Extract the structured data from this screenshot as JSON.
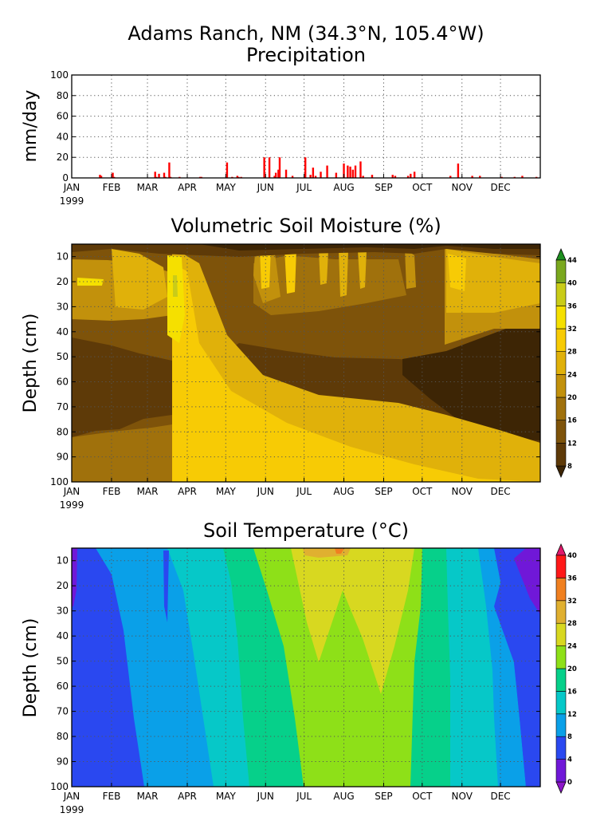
{
  "title": "Adams Ranch, NM (34.3°N, 105.4°W)",
  "chart_data": [
    {
      "type": "bar",
      "title": "Precipitation",
      "ylabel": "mm/day",
      "ylim": [
        0,
        100
      ],
      "yticks": [
        0,
        20,
        40,
        60,
        80,
        100
      ],
      "grid": true,
      "xticks": [
        "JAN",
        "FEB",
        "MAR",
        "APR",
        "MAY",
        "JUN",
        "JUL",
        "AUG",
        "SEP",
        "OCT",
        "NOV",
        "DEC"
      ],
      "year": "1999",
      "bar_color": "#ff0000",
      "x": [
        22,
        23,
        32,
        33,
        65,
        66,
        68,
        72,
        73,
        76,
        77,
        84,
        100,
        101,
        121,
        125,
        129,
        130,
        132,
        150,
        154,
        158,
        159,
        161,
        162,
        167,
        172,
        182,
        186,
        188,
        190,
        194,
        199,
        206,
        212,
        215,
        217,
        219,
        221,
        225,
        227,
        234,
        250,
        252,
        262,
        264,
        267,
        295,
        301,
        312,
        318,
        335,
        345,
        351,
        362
      ],
      "values": [
        3,
        2,
        5,
        1,
        6,
        1,
        4,
        5,
        1,
        15,
        1,
        1,
        1,
        1,
        15,
        1,
        2,
        1,
        1,
        20,
        20,
        2,
        5,
        8,
        20,
        8,
        2,
        20,
        3,
        10,
        2,
        6,
        12,
        5,
        14,
        12,
        11,
        8,
        12,
        16,
        2,
        3,
        3,
        2,
        2,
        4,
        6,
        2,
        14,
        2,
        2,
        1,
        1,
        2,
        1
      ]
    },
    {
      "type": "heatmap",
      "title": "Volumetric Soil Moisture (%)",
      "ylabel": "Depth (cm)",
      "yticks": [
        10,
        20,
        30,
        40,
        50,
        60,
        70,
        80,
        90,
        100
      ],
      "ylim": [
        100,
        5
      ],
      "xticks": [
        "JAN",
        "FEB",
        "MAR",
        "APR",
        "MAY",
        "JUN",
        "JUL",
        "AUG",
        "SEP",
        "OCT",
        "NOV",
        "DEC"
      ],
      "year": "1999",
      "colorbar_levels": [
        8,
        12,
        16,
        20,
        24,
        28,
        32,
        36,
        40,
        44
      ],
      "colorbar_colors": [
        "#3d2505",
        "#5e3a08",
        "#7e530a",
        "#a0710c",
        "#c2910c",
        "#e0b10a",
        "#f7cb05",
        "#f5e000",
        "#c9cc18",
        "#7aa81e",
        "#1d8f1f"
      ]
    },
    {
      "type": "heatmap",
      "title": "Soil Temperature (°C)",
      "ylabel": "Depth (cm)",
      "yticks": [
        10,
        20,
        30,
        40,
        50,
        60,
        70,
        80,
        90,
        100
      ],
      "ylim": [
        100,
        5
      ],
      "xticks": [
        "JAN",
        "FEB",
        "MAR",
        "APR",
        "MAY",
        "JUN",
        "JUL",
        "AUG",
        "SEP",
        "OCT",
        "NOV",
        "DEC"
      ],
      "year": "1999",
      "colorbar_levels": [
        0,
        4,
        8,
        12,
        16,
        20,
        24,
        28,
        32,
        36,
        40
      ],
      "colorbar_colors": [
        "#8c16c8",
        "#7018d8",
        "#2a48f0",
        "#0aa0e8",
        "#06c8c8",
        "#06d08a",
        "#8ee018",
        "#d8d820",
        "#e0b030",
        "#f08020",
        "#ff1818",
        "#e0186a"
      ]
    }
  ]
}
